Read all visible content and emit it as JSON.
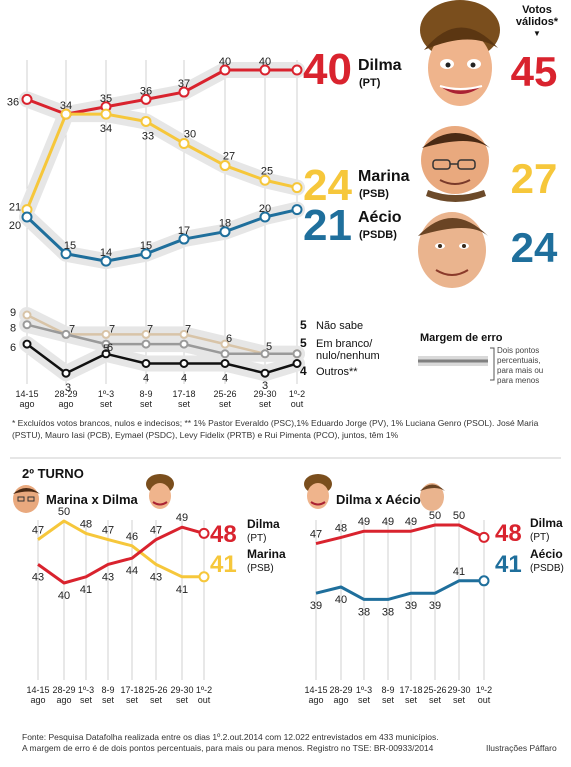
{
  "first_round": {
    "chart_data": {
      "type": "line",
      "categories": [
        {
          "top": "14-15",
          "bottom": "ago"
        },
        {
          "top": "28-29",
          "bottom": "ago"
        },
        {
          "top": "1º-3",
          "bottom": "set"
        },
        {
          "top": "8-9",
          "bottom": "set"
        },
        {
          "top": "17-18",
          "bottom": "set"
        },
        {
          "top": "25-26",
          "bottom": "set"
        },
        {
          "top": "29-30",
          "bottom": "set"
        },
        {
          "top": "1º-2",
          "bottom": "out"
        }
      ],
      "series": [
        {
          "key": "dilma",
          "name": "Dilma",
          "party": "(PT)",
          "color": "#d9232e",
          "values": [
            36,
            34,
            35,
            36,
            37,
            40,
            40,
            40
          ]
        },
        {
          "key": "marina",
          "name": "Marina",
          "party": "(PSB)",
          "color": "#f6c73b",
          "values": [
            21,
            34,
            34,
            33,
            30,
            27,
            25,
            24
          ]
        },
        {
          "key": "aecio",
          "name": "Aécio",
          "party": "(PSDB)",
          "color": "#1f6f9c",
          "values": [
            20,
            15,
            14,
            15,
            17,
            18,
            20,
            21
          ]
        },
        {
          "key": "naosabe",
          "name": "Não sabe",
          "color": "#d8c4a8",
          "values": [
            9,
            7,
            7,
            7,
            7,
            6,
            5,
            5
          ]
        },
        {
          "key": "branco",
          "name": "Em branco/ nulo/nenhum",
          "color": "#9a9a9a",
          "values": [
            8,
            7,
            6,
            6,
            6,
            5,
            5,
            5
          ]
        },
        {
          "key": "outros",
          "name": "Outros**",
          "color": "#111111",
          "values": [
            6,
            3,
            5,
            4,
            4,
            4,
            3,
            4
          ]
        }
      ]
    },
    "final_values": {
      "dilma": "40",
      "marina": "24",
      "aecio": "21",
      "naosabe": "5",
      "branco": "5",
      "outros": "4"
    },
    "small_labels": {
      "naosabe": "Não sabe",
      "branco_l1": "Em branco/",
      "branco_l2": "nulo/nenhum",
      "outros": "Outros**"
    },
    "valid_votes": {
      "title_l1": "Votos",
      "title_l2": "válidos*",
      "arrow": "▼",
      "dilma": "45",
      "marina": "27",
      "aecio": "24"
    },
    "margin_box": {
      "title": "Margem de erro",
      "l1": "Dois pontos",
      "l2": "percentuais,",
      "l3": "para mais ou",
      "l4": "para menos"
    },
    "footnote_l1": "* Excluídos votos brancos, nulos e indecisos;   ** 1% Pastor Everaldo (PSC),1% Eduardo Jorge (PV), 1% Luciana Genro (PSOL). José Maria",
    "footnote_l2": "(PSTU), Mauro Iasi (PCB), Eymael (PSDC), Levy Fidelix (PRTB) e Rui Pimenta (PCO), juntos, têm 1%"
  },
  "second_round": {
    "title": "2º TURNO",
    "chart_data": [
      {
        "type": "line",
        "title": "Marina x Dilma",
        "series": [
          {
            "key": "marina",
            "name": "Marina",
            "party": "(PSB)",
            "color": "#f6c73b",
            "values": [
              47,
              50,
              48,
              47,
              46,
              43,
              41,
              41
            ]
          },
          {
            "key": "dilma",
            "name": "Dilma",
            "party": "(PT)",
            "color": "#d9232e",
            "values": [
              43,
              40,
              41,
              43,
              44,
              47,
              49,
              48
            ]
          }
        ]
      },
      {
        "type": "line",
        "title": "Dilma x Aécio",
        "series": [
          {
            "key": "dilma",
            "name": "Dilma",
            "party": "(PT)",
            "color": "#d9232e",
            "values": [
              47,
              48,
              49,
              49,
              49,
              50,
              50,
              48
            ]
          },
          {
            "key": "aecio",
            "name": "Aécio",
            "party": "(PSDB)",
            "color": "#1f6f9c",
            "values": [
              39,
              40,
              38,
              38,
              39,
              39,
              41,
              41
            ]
          }
        ]
      }
    ]
  },
  "footer": {
    "source_l1": "Fonte: Pesquisa Datafolha realizada entre os dias 1º.2.out.2014 com 12.022 entrevistados em 433 municípios.",
    "source_l2": "A margem de erro é de dois pontos percentuais, para mais ou para menos. Registro no TSE: BR-00933/2014",
    "credit": "Ilustrações Páffaro"
  }
}
